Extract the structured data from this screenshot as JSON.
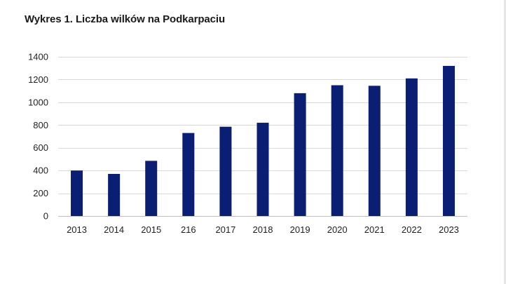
{
  "chart_data": {
    "type": "bar",
    "title": "Wykres 1. Liczba wilków na Podkarpaciu",
    "xlabel": "",
    "ylabel": "",
    "categories": [
      "2013",
      "2014",
      "2015",
      "216",
      "2017",
      "2018",
      "2019",
      "2020",
      "2021",
      "2022",
      "2023"
    ],
    "values": [
      400,
      370,
      485,
      730,
      785,
      820,
      1080,
      1150,
      1145,
      1210,
      1320
    ],
    "ylim": [
      0,
      1400
    ],
    "yticks": [
      "0",
      "200",
      "400",
      "600",
      "800",
      "1000",
      "1200",
      "1400"
    ],
    "grid": true,
    "legend": "none",
    "bar_color": "#0a1f73",
    "grid_color": "#d9d9d9"
  }
}
